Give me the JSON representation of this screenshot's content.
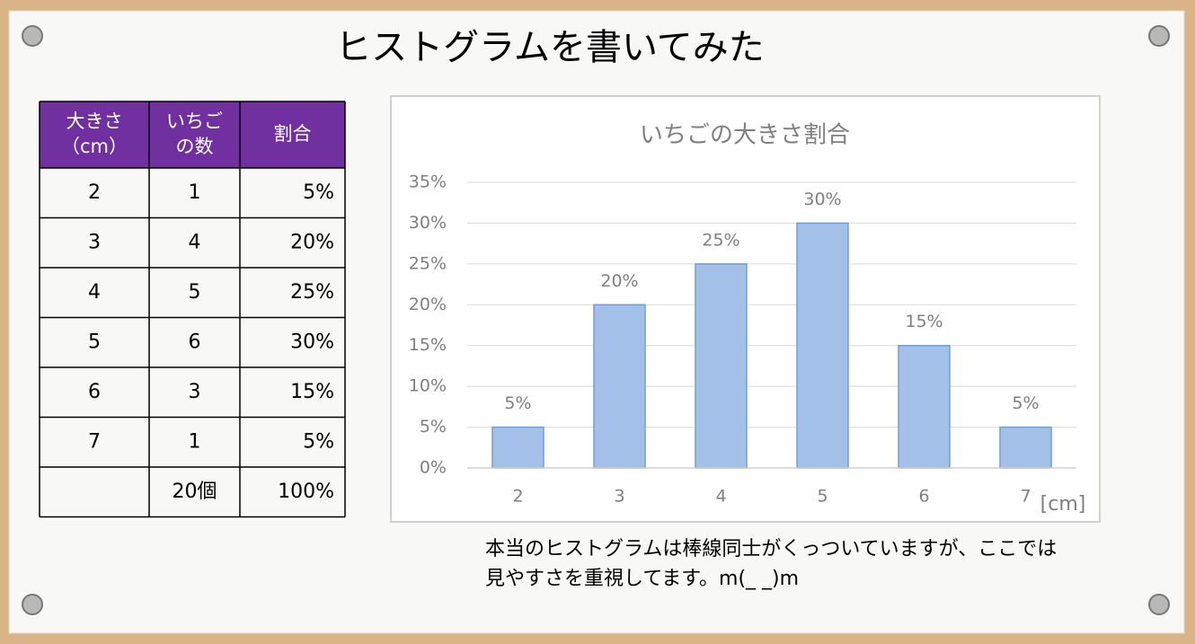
{
  "title": "ヒストグラムを書いてみた",
  "table": {
    "header": [
      [
        "大きさ",
        "（cm）"
      ],
      [
        "いちご",
        "の数"
      ],
      [
        "割合"
      ]
    ],
    "rows": [
      [
        "2",
        "1",
        "5%"
      ],
      [
        "3",
        "4",
        "20%"
      ],
      [
        "4",
        "5",
        "25%"
      ],
      [
        "5",
        "6",
        "30%"
      ],
      [
        "6",
        "3",
        "15%"
      ],
      [
        "7",
        "1",
        "5%"
      ]
    ],
    "total": {
      "count": "20個",
      "ratio": "100%"
    }
  },
  "chart_data": {
    "type": "bar",
    "title": "いちごの大きさ割合",
    "categories": [
      "2",
      "3",
      "4",
      "5",
      "6",
      "7"
    ],
    "values": [
      5,
      20,
      25,
      30,
      15,
      5
    ],
    "value_labels": [
      "5%",
      "20%",
      "25%",
      "30%",
      "15%",
      "5%"
    ],
    "color": "#a3c0e8",
    "x_label": "[cm]",
    "ylim": [
      0,
      35
    ],
    "yticks": [
      {
        "value": 0,
        "label": "0%"
      },
      {
        "value": 5,
        "label": "5%"
      },
      {
        "value": 10,
        "label": "10%"
      },
      {
        "value": 15,
        "label": "15%"
      },
      {
        "value": 20,
        "label": "20%"
      },
      {
        "value": 25,
        "label": "25%"
      },
      {
        "value": 30,
        "label": "30%"
      },
      {
        "value": 35,
        "label": "35%"
      }
    ],
    "grid": true
  },
  "note": [
    "本当のヒストグラムは棒線同士がくっついていますが、ここでは",
    "見やすさを重視してます。m(_ _)m"
  ]
}
